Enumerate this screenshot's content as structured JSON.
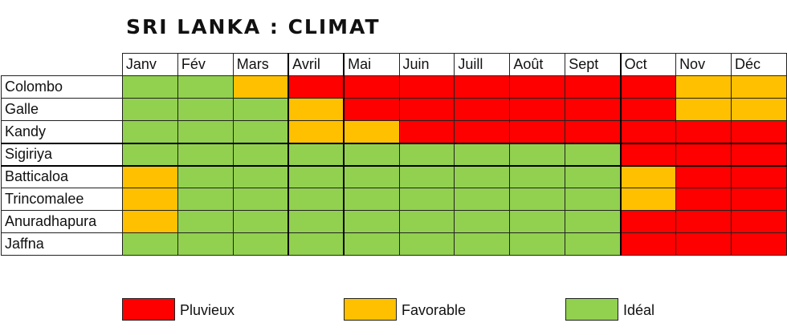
{
  "title": "SRI LANKA : CLIMAT",
  "chart_data": {
    "type": "heatmap",
    "title": "SRI LANKA : CLIMAT",
    "columns": [
      "Janv",
      "Fév",
      "Mars",
      "Avril",
      "Mai",
      "Juin",
      "Juill",
      "Août",
      "Sept",
      "Oct",
      "Nov",
      "Déc"
    ],
    "rows": [
      "Colombo",
      "Galle",
      "Kandy",
      "Sigiriya",
      "Batticaloa",
      "Trincomalee",
      "Anuradhapura",
      "Jaffna"
    ],
    "values": [
      [
        "I",
        "I",
        "F",
        "P",
        "P",
        "P",
        "P",
        "P",
        "P",
        "P",
        "F",
        "F"
      ],
      [
        "I",
        "I",
        "I",
        "F",
        "P",
        "P",
        "P",
        "P",
        "P",
        "P",
        "F",
        "F"
      ],
      [
        "I",
        "I",
        "I",
        "F",
        "F",
        "P",
        "P",
        "P",
        "P",
        "P",
        "P",
        "P"
      ],
      [
        "I",
        "I",
        "I",
        "I",
        "I",
        "I",
        "I",
        "I",
        "I",
        "P",
        "P",
        "P"
      ],
      [
        "F",
        "I",
        "I",
        "I",
        "I",
        "I",
        "I",
        "I",
        "I",
        "F",
        "P",
        "P"
      ],
      [
        "F",
        "I",
        "I",
        "I",
        "I",
        "I",
        "I",
        "I",
        "I",
        "F",
        "P",
        "P"
      ],
      [
        "F",
        "I",
        "I",
        "I",
        "I",
        "I",
        "I",
        "I",
        "I",
        "P",
        "P",
        "P"
      ],
      [
        "I",
        "I",
        "I",
        "I",
        "I",
        "I",
        "I",
        "I",
        "I",
        "P",
        "P",
        "P"
      ]
    ],
    "categories": {
      "P": {
        "label": "Pluvieux",
        "color": "#ff0000"
      },
      "F": {
        "label": "Favorable",
        "color": "#ffc000"
      },
      "I": {
        "label": "Idéal",
        "color": "#92d050"
      }
    },
    "legend": [
      {
        "key": "P",
        "label": "Pluvieux",
        "color": "#ff0000"
      },
      {
        "key": "F",
        "label": "Favorable",
        "color": "#ffc000"
      },
      {
        "key": "I",
        "label": "Idéal",
        "color": "#92d050"
      }
    ],
    "legend_position": "bottom"
  }
}
